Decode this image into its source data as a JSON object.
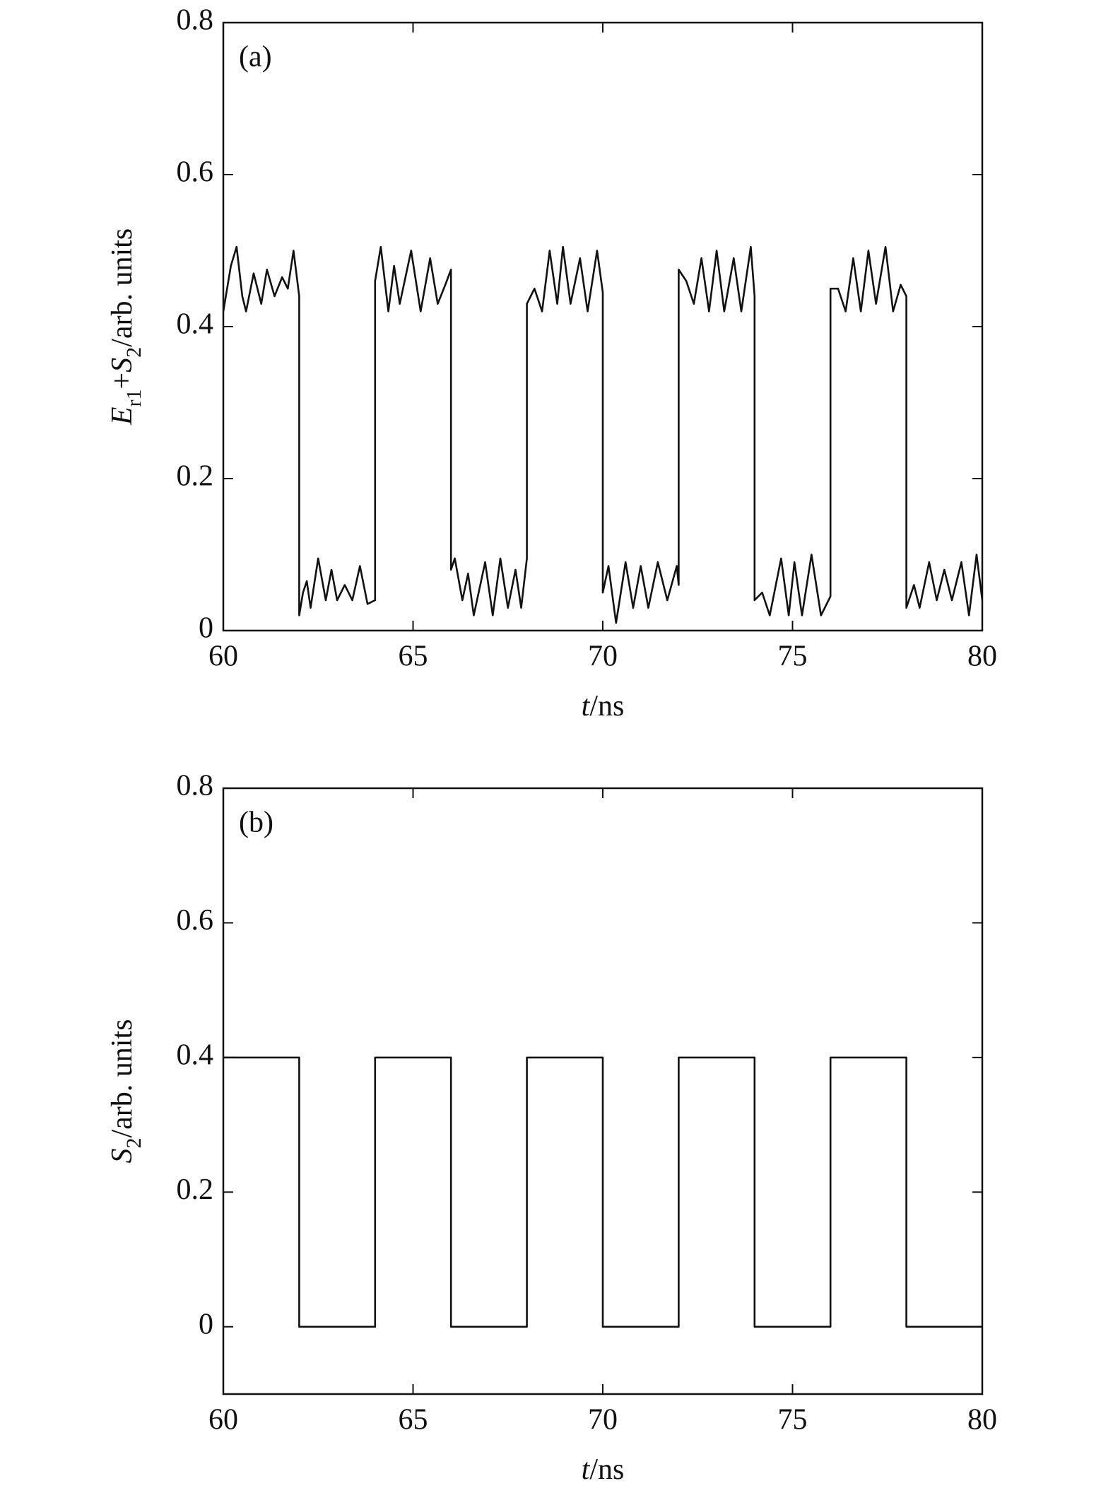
{
  "chart_data": [
    {
      "type": "line",
      "panel_label": "(a)",
      "xlabel": [
        "t",
        "/ns"
      ],
      "ylabel": [
        "E",
        "r1",
        "+",
        "S",
        "2",
        "/arb. units"
      ],
      "x": [
        60,
        60.2,
        60.35,
        60.5,
        60.6,
        60.8,
        61,
        61.15,
        61.35,
        61.55,
        61.7,
        61.85,
        62,
        62,
        62.1,
        62.2,
        62.3,
        62.5,
        62.7,
        62.85,
        63,
        63.2,
        63.4,
        63.6,
        63.8,
        64,
        64,
        64.15,
        64.35,
        64.5,
        64.65,
        64.95,
        65.2,
        65.45,
        65.65,
        65.85,
        66,
        66,
        66.1,
        66.3,
        66.45,
        66.6,
        66.9,
        67.1,
        67.3,
        67.5,
        67.7,
        67.85,
        68,
        68,
        68.2,
        68.4,
        68.6,
        68.8,
        68.95,
        69.15,
        69.4,
        69.6,
        69.85,
        70,
        70,
        70.15,
        70.35,
        70.6,
        70.8,
        71,
        71.2,
        71.45,
        71.7,
        71.95,
        72,
        72,
        72.2,
        72.4,
        72.6,
        72.8,
        73,
        73.2,
        73.45,
        73.65,
        73.9,
        74,
        74,
        74.2,
        74.4,
        74.7,
        74.9,
        75.05,
        75.25,
        75.5,
        75.75,
        76,
        76,
        76.2,
        76.4,
        76.6,
        76.8,
        77,
        77.2,
        77.45,
        77.65,
        77.85,
        78,
        78,
        78.2,
        78.35,
        78.6,
        78.8,
        79,
        79.2,
        79.45,
        79.65,
        79.85,
        80
      ],
      "series": [
        {
          "color": "#111111",
          "values": [
            0.42,
            0.48,
            0.505,
            0.44,
            0.42,
            0.47,
            0.43,
            0.475,
            0.44,
            0.465,
            0.45,
            0.5,
            0.44,
            0.02,
            0.05,
            0.065,
            0.03,
            0.095,
            0.04,
            0.08,
            0.04,
            0.06,
            0.04,
            0.085,
            0.035,
            0.04,
            0.46,
            0.505,
            0.42,
            0.48,
            0.43,
            0.5,
            0.42,
            0.49,
            0.43,
            0.455,
            0.475,
            0.08,
            0.095,
            0.04,
            0.075,
            0.02,
            0.09,
            0.02,
            0.095,
            0.03,
            0.08,
            0.03,
            0.095,
            0.43,
            0.45,
            0.42,
            0.5,
            0.43,
            0.505,
            0.43,
            0.49,
            0.42,
            0.5,
            0.445,
            0.05,
            0.085,
            0.01,
            0.09,
            0.03,
            0.085,
            0.03,
            0.09,
            0.04,
            0.085,
            0.06,
            0.475,
            0.46,
            0.43,
            0.49,
            0.42,
            0.5,
            0.42,
            0.49,
            0.42,
            0.505,
            0.44,
            0.04,
            0.05,
            0.02,
            0.095,
            0.02,
            0.09,
            0.02,
            0.1,
            0.02,
            0.045,
            0.45,
            0.45,
            0.42,
            0.49,
            0.42,
            0.5,
            0.43,
            0.505,
            0.42,
            0.455,
            0.44,
            0.03,
            0.06,
            0.03,
            0.09,
            0.04,
            0.08,
            0.04,
            0.09,
            0.02,
            0.1,
            0.04
          ]
        }
      ],
      "xlim": [
        60,
        80
      ],
      "ylim": [
        0,
        0.8
      ],
      "xticks": [
        60,
        65,
        70,
        75,
        80
      ],
      "yticks": [
        0,
        0.2,
        0.4,
        0.6,
        0.8
      ]
    },
    {
      "type": "line",
      "panel_label": "(b)",
      "xlabel": [
        "t",
        "/ns"
      ],
      "ylabel": [
        "S",
        "2",
        "/arb. units"
      ],
      "x": [
        60,
        62,
        62,
        64,
        64,
        66,
        66,
        68,
        68,
        70,
        70,
        72,
        72,
        74,
        74,
        76,
        76,
        78,
        78,
        80
      ],
      "series": [
        {
          "color": "#111111",
          "values": [
            0.4,
            0.4,
            0,
            0,
            0.4,
            0.4,
            0,
            0,
            0.4,
            0.4,
            0,
            0,
            0.4,
            0.4,
            0,
            0,
            0.4,
            0.4,
            0,
            0
          ]
        }
      ],
      "xlim": [
        60,
        80
      ],
      "ylim": [
        -0.1,
        0.8
      ],
      "xticks": [
        60,
        65,
        70,
        75,
        80
      ],
      "yticks": [
        0,
        0.2,
        0.4,
        0.6,
        0.8
      ]
    }
  ]
}
